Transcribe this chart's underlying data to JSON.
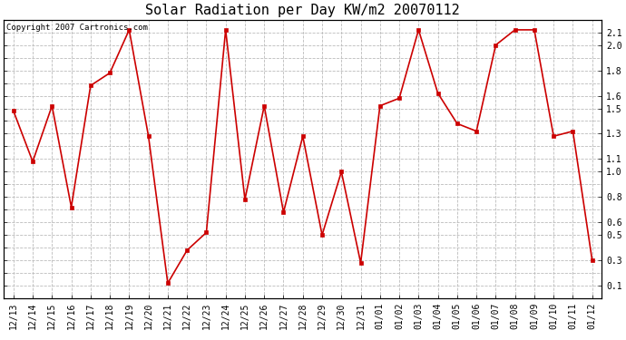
{
  "title": "Solar Radiation per Day KW/m2 20070112",
  "copyright": "Copyright 2007 Cartronics.com",
  "x_labels": [
    "12/13",
    "12/14",
    "12/15",
    "12/16",
    "12/17",
    "12/18",
    "12/19",
    "12/20",
    "12/21",
    "12/22",
    "12/23",
    "12/24",
    "12/25",
    "12/26",
    "12/27",
    "12/28",
    "12/29",
    "12/30",
    "12/31",
    "01/01",
    "01/02",
    "01/03",
    "01/04",
    "01/05",
    "01/06",
    "01/07",
    "01/08",
    "01/09",
    "01/10",
    "01/11",
    "01/12"
  ],
  "y_values": [
    1.48,
    1.08,
    1.52,
    0.72,
    1.68,
    1.78,
    2.12,
    1.28,
    0.12,
    0.38,
    0.52,
    2.12,
    0.78,
    1.52,
    0.68,
    1.28,
    0.5,
    1.0,
    0.28,
    1.52,
    1.58,
    2.12,
    1.62,
    1.38,
    1.32,
    2.0,
    2.12,
    2.12,
    1.28,
    1.32,
    0.3
  ],
  "line_color": "#cc0000",
  "marker": "s",
  "marker_size": 3,
  "marker_color": "#cc0000",
  "bg_color": "#ffffff",
  "plot_bg_color": "#ffffff",
  "grid_color": "#bbbbbb",
  "grid_style": "--",
  "ylim": [
    0.0,
    2.2
  ],
  "yticks": [
    0.1,
    0.3,
    0.5,
    0.6,
    0.8,
    1.0,
    1.1,
    1.3,
    1.5,
    1.6,
    1.8,
    2.0,
    2.1
  ],
  "grid_yticks": [
    0.1,
    0.2,
    0.3,
    0.4,
    0.5,
    0.6,
    0.7,
    0.8,
    0.9,
    1.0,
    1.1,
    1.2,
    1.3,
    1.4,
    1.5,
    1.6,
    1.7,
    1.8,
    1.9,
    2.0,
    2.1,
    2.2
  ],
  "title_fontsize": 11,
  "tick_fontsize": 7,
  "copyright_fontsize": 6.5
}
